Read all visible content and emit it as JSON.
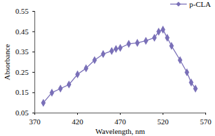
{
  "chart_data": {
    "type": "line",
    "x_label": "Wavelength, nm",
    "y_label": "Absorbance",
    "x": [
      380,
      390,
      400,
      410,
      420,
      430,
      440,
      450,
      460,
      465,
      470,
      480,
      490,
      500,
      510,
      515,
      520,
      525,
      530,
      540,
      548,
      553,
      558
    ],
    "series": [
      {
        "name": "p-CLA",
        "color": "#7a70b8",
        "marker": "diamond",
        "values": [
          0.1,
          0.15,
          0.17,
          0.19,
          0.24,
          0.27,
          0.31,
          0.34,
          0.355,
          0.365,
          0.37,
          0.39,
          0.395,
          0.405,
          0.42,
          0.45,
          0.46,
          0.42,
          0.38,
          0.31,
          0.25,
          0.2,
          0.17
        ]
      }
    ],
    "xlim": [
      370,
      570
    ],
    "xticks": [
      370,
      420,
      470,
      520,
      570
    ],
    "ylim": [
      0.05,
      0.55
    ],
    "yticks": [
      0.05,
      0.15,
      0.25,
      0.35,
      0.45,
      0.55
    ],
    "grid": false,
    "legend": "top-right"
  }
}
